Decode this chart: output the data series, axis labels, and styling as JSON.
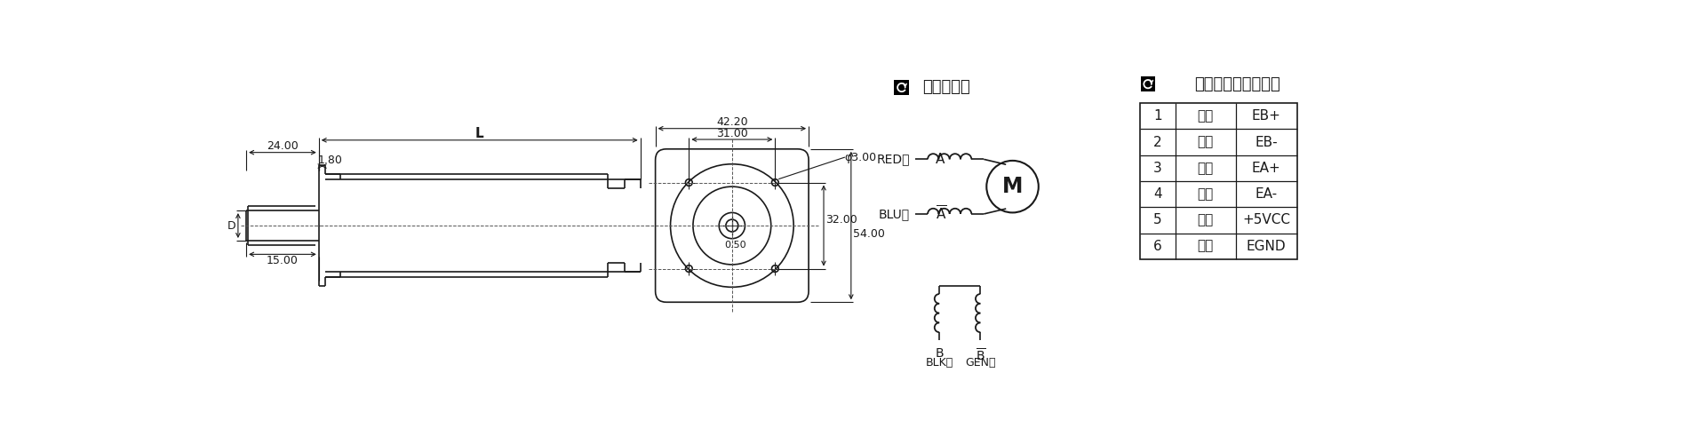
{
  "bg_color": "#ffffff",
  "line_color": "#1a1a1a",
  "table_data": [
    [
      "1",
      "黄色",
      "EB+"
    ],
    [
      "2",
      "绿色",
      "EB-"
    ],
    [
      "3",
      "黑色",
      "EA+"
    ],
    [
      "4",
      "蓝色",
      "EA-"
    ],
    [
      "5",
      "红色",
      "+5VCC"
    ],
    [
      "6",
      "白色",
      "EGND"
    ]
  ],
  "motor_label": "电机线颜色",
  "encoder_label": "编码器出线颜色定义",
  "dim_24": "24.00",
  "dim_L": "L",
  "dim_1p8": "1.80",
  "dim_15": "15.00",
  "dim_D": "D",
  "dim_42p2": "42.20",
  "dim_31": "31.00",
  "dim_phi3": "φ3.00",
  "dim_32": "32.00",
  "dim_54": "54.00",
  "dim_0p5": "0.50"
}
